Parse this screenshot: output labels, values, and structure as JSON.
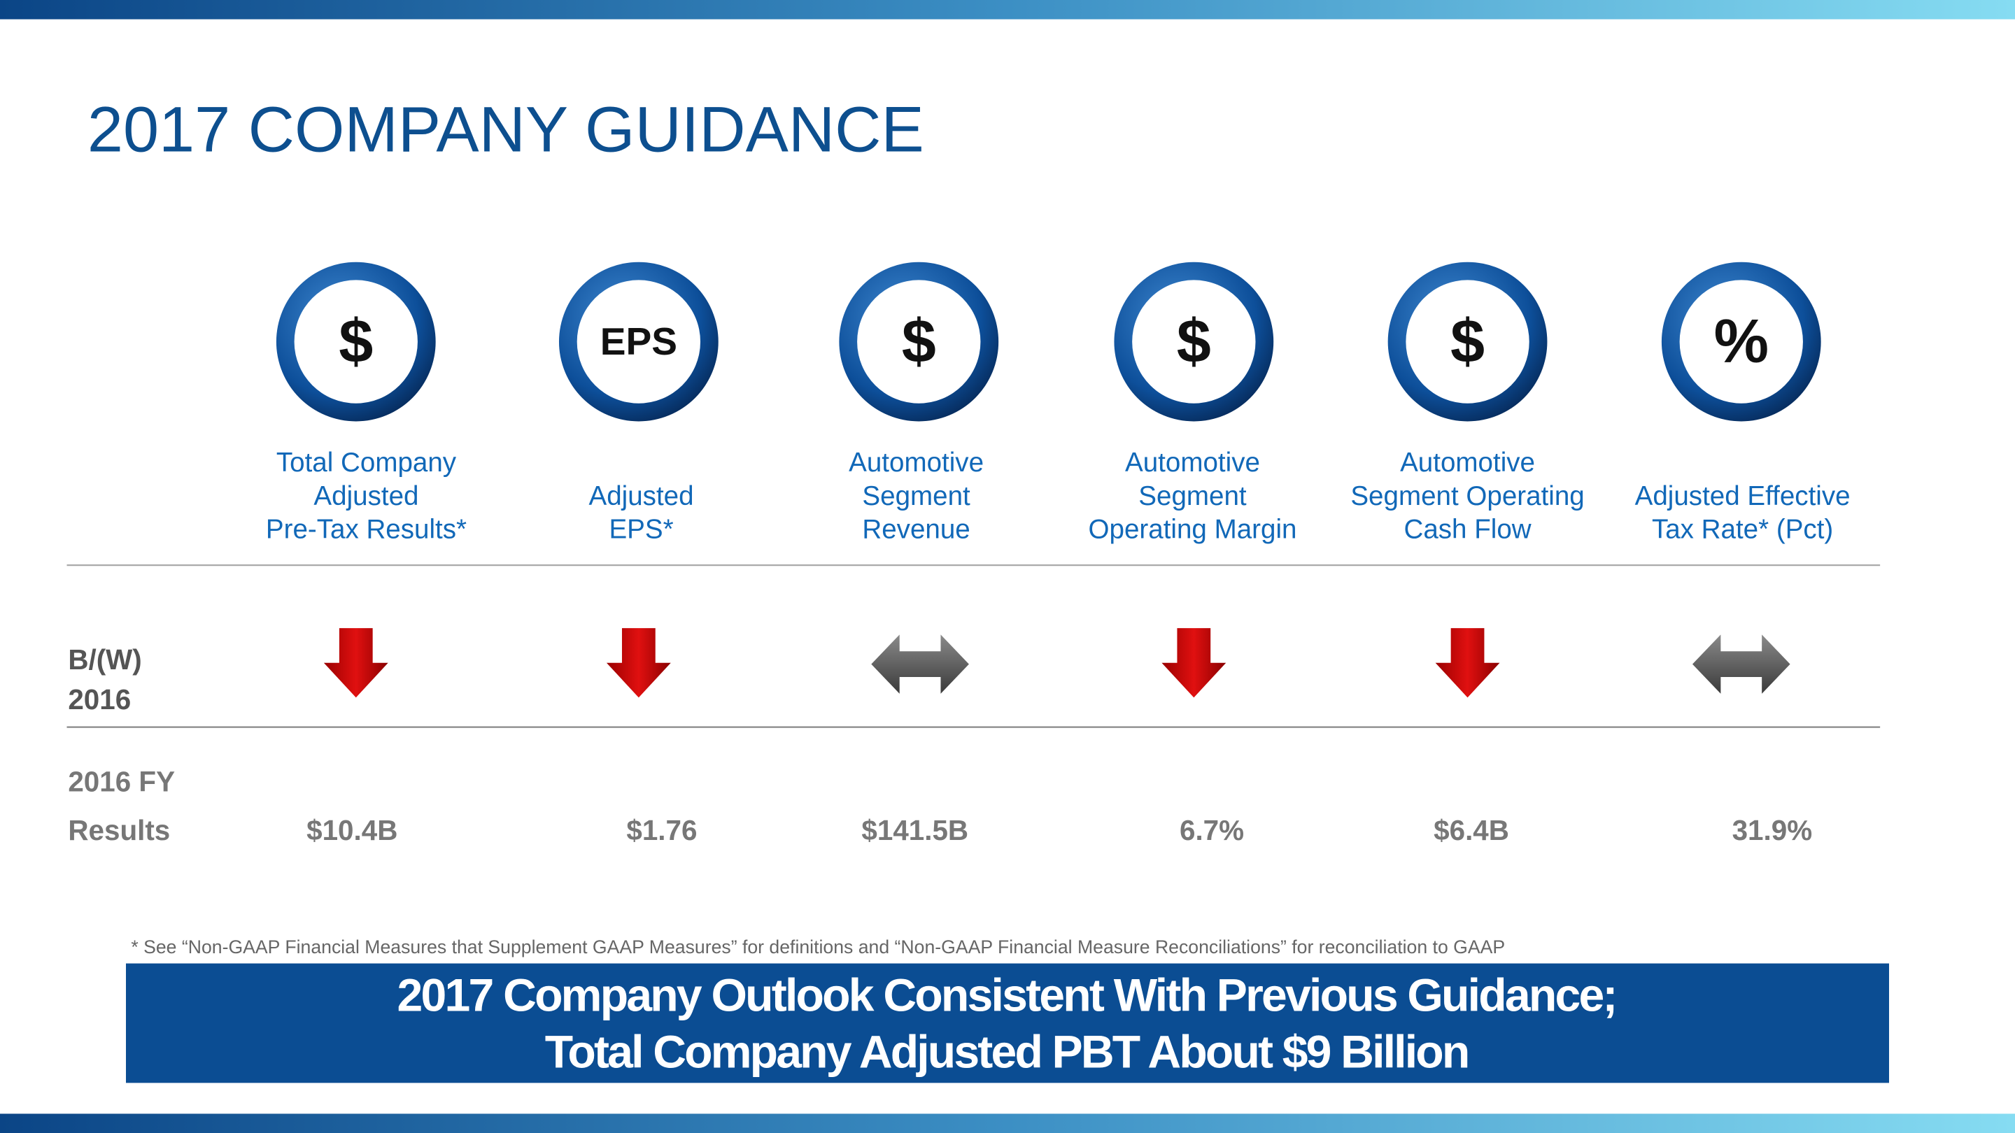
{
  "header": {
    "title": "2017 COMPANY GUIDANCE"
  },
  "metrics": [
    {
      "icon": "$",
      "label": [
        "Total Company",
        "Adjusted",
        "Pre-Tax Results*"
      ],
      "result": "$10.4B"
    },
    {
      "icon": "EPS",
      "label": [
        "Adjusted",
        "EPS*"
      ],
      "result": "$1.76"
    },
    {
      "icon": "$",
      "label": [
        "Automotive",
        "Segment",
        "Revenue"
      ],
      "result": "$141.5B"
    },
    {
      "icon": "$",
      "label": [
        "Automotive",
        "Segment",
        "Operating Margin"
      ],
      "result": "6.7%"
    },
    {
      "icon": "$",
      "label": [
        "Automotive",
        "Segment Operating",
        "Cash Flow"
      ],
      "result": "$6.4B"
    },
    {
      "icon": "%",
      "label": [
        "Adjusted Effective",
        "Tax Rate* (Pct)"
      ],
      "result": "31.9%"
    }
  ],
  "row_labels": {
    "change": [
      "B/(W)",
      "2016"
    ],
    "results": [
      "2016 FY",
      "Results"
    ]
  },
  "footnote": "*  See “Non-GAAP Financial Measures that Supplement GAAP Measures” for definitions and “Non-GAAP Financial Measure Reconciliations” for reconciliation to GAAP",
  "banner": [
    "2017 Company Outlook Consistent With Previous Guidance;",
    "Total Company Adjusted PBT About $9 Billion"
  ]
}
